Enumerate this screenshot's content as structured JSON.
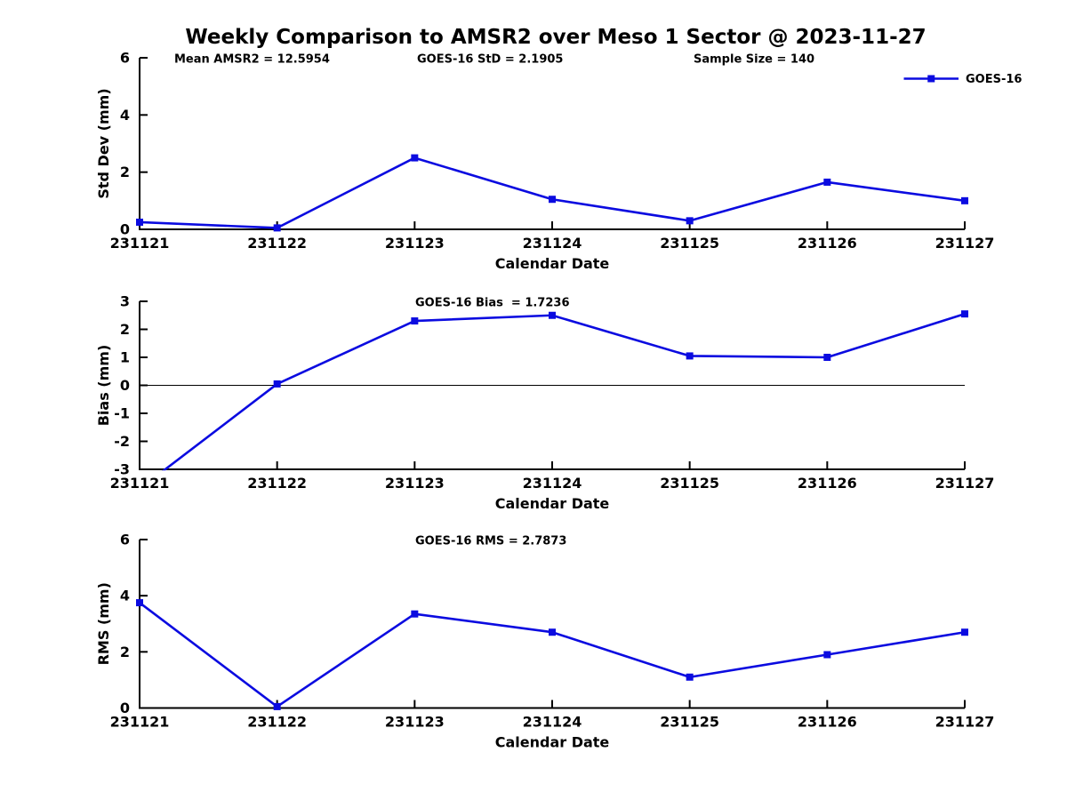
{
  "page": {
    "title": "Weekly Comparison to AMSR2 over Meso 1 Sector @ 2023-11-27"
  },
  "colors": {
    "series": "#0b0be0",
    "axis": "#000000",
    "text": "#000000",
    "background": "#ffffff"
  },
  "chart_data": [
    {
      "type": "line",
      "panel": "std-dev",
      "xlabel": "Calendar Date",
      "ylabel": "Std Dev (mm)",
      "ylim": [
        0,
        6
      ],
      "yticks": [
        0,
        2,
        4,
        6
      ],
      "grid": false,
      "categories": [
        "231121",
        "231122",
        "231123",
        "231124",
        "231125",
        "231126",
        "231127"
      ],
      "series": [
        {
          "name": "GOES-16",
          "values": [
            0.25,
            0.05,
            2.5,
            1.05,
            0.3,
            1.65,
            1.0
          ]
        }
      ],
      "annotations": [
        {
          "text": "Mean AMSR2 = 12.5954",
          "x": 196
        },
        {
          "text": "GOES-16 StD = 2.1905",
          "x": 469
        },
        {
          "text": "Sample Size = 140",
          "x": 780
        }
      ],
      "legend": {
        "visible": true,
        "label": "GOES-16",
        "position": "top-right"
      }
    },
    {
      "type": "line",
      "panel": "bias",
      "xlabel": "Calendar Date",
      "ylabel": "Bias (mm)",
      "ylim": [
        -3,
        3
      ],
      "yticks": [
        -3,
        -2,
        -1,
        0,
        1,
        2,
        3
      ],
      "zero_line": true,
      "grid": false,
      "categories": [
        "231121",
        "231122",
        "231123",
        "231124",
        "231125",
        "231126",
        "231127"
      ],
      "series": [
        {
          "name": "GOES-16",
          "values": [
            -3.7,
            0.05,
            2.3,
            2.5,
            1.05,
            1.0,
            2.55
          ]
        }
      ],
      "annotations": [
        {
          "text": "GOES-16 Bias  = 1.7236",
          "x": 467
        }
      ],
      "legend": {
        "visible": false,
        "label": "GOES-16"
      }
    },
    {
      "type": "line",
      "panel": "rms",
      "xlabel": "Calendar Date",
      "ylabel": "RMS (mm)",
      "ylim": [
        0,
        6
      ],
      "yticks": [
        0,
        2,
        4,
        6
      ],
      "grid": false,
      "categories": [
        "231121",
        "231122",
        "231123",
        "231124",
        "231125",
        "231126",
        "231127"
      ],
      "series": [
        {
          "name": "GOES-16",
          "values": [
            3.75,
            0.05,
            3.35,
            2.7,
            1.1,
            1.9,
            2.7
          ]
        }
      ],
      "annotations": [
        {
          "text": "GOES-16 RMS = 2.7873",
          "x": 467
        }
      ],
      "legend": {
        "visible": false,
        "label": "GOES-16"
      }
    }
  ]
}
